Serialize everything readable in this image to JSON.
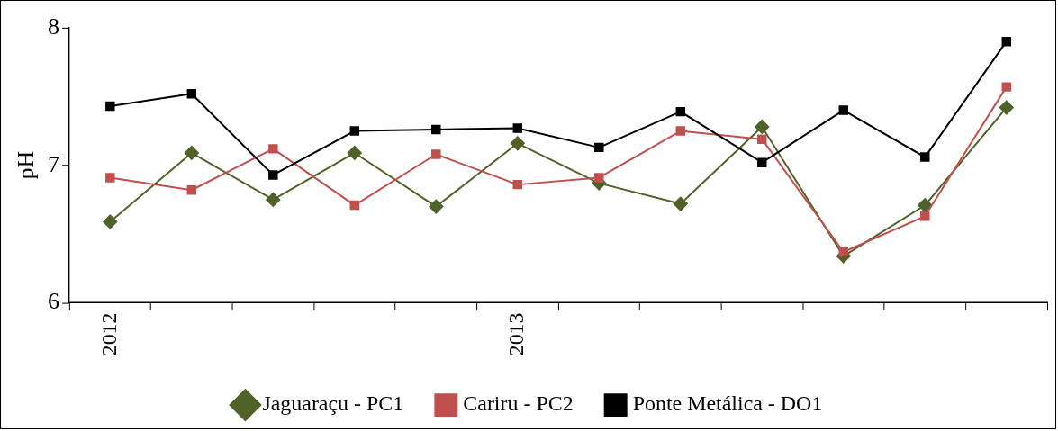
{
  "chart_data": {
    "type": "line",
    "ylabel": "pH",
    "categories": [
      "2012",
      null,
      null,
      null,
      null,
      "2013",
      null,
      null,
      null,
      null,
      null,
      null
    ],
    "series": [
      {
        "name": "Jaguaraçu - PC1",
        "color": "#4f6228",
        "marker": "diamond",
        "values": [
          6.59,
          7.09,
          6.75,
          7.09,
          6.7,
          7.16,
          6.87,
          6.72,
          7.28,
          6.34,
          6.71,
          7.42
        ]
      },
      {
        "name": "Cariru - PC2",
        "color": "#c0504d",
        "marker": "square",
        "values": [
          6.91,
          6.82,
          7.12,
          6.71,
          7.08,
          6.86,
          6.91,
          7.25,
          7.19,
          6.37,
          6.63,
          7.57
        ]
      },
      {
        "name": "Ponte Metálica - DO1",
        "color": "#000000",
        "marker": "square",
        "values": [
          7.43,
          7.52,
          6.93,
          7.25,
          7.26,
          7.27,
          7.13,
          7.39,
          7.02,
          7.4,
          7.06,
          7.9
        ]
      }
    ],
    "ylim": [
      6,
      8
    ],
    "yticks": [
      6,
      7,
      8
    ],
    "grid": false,
    "legend": "bottom",
    "line_style": "solid"
  }
}
